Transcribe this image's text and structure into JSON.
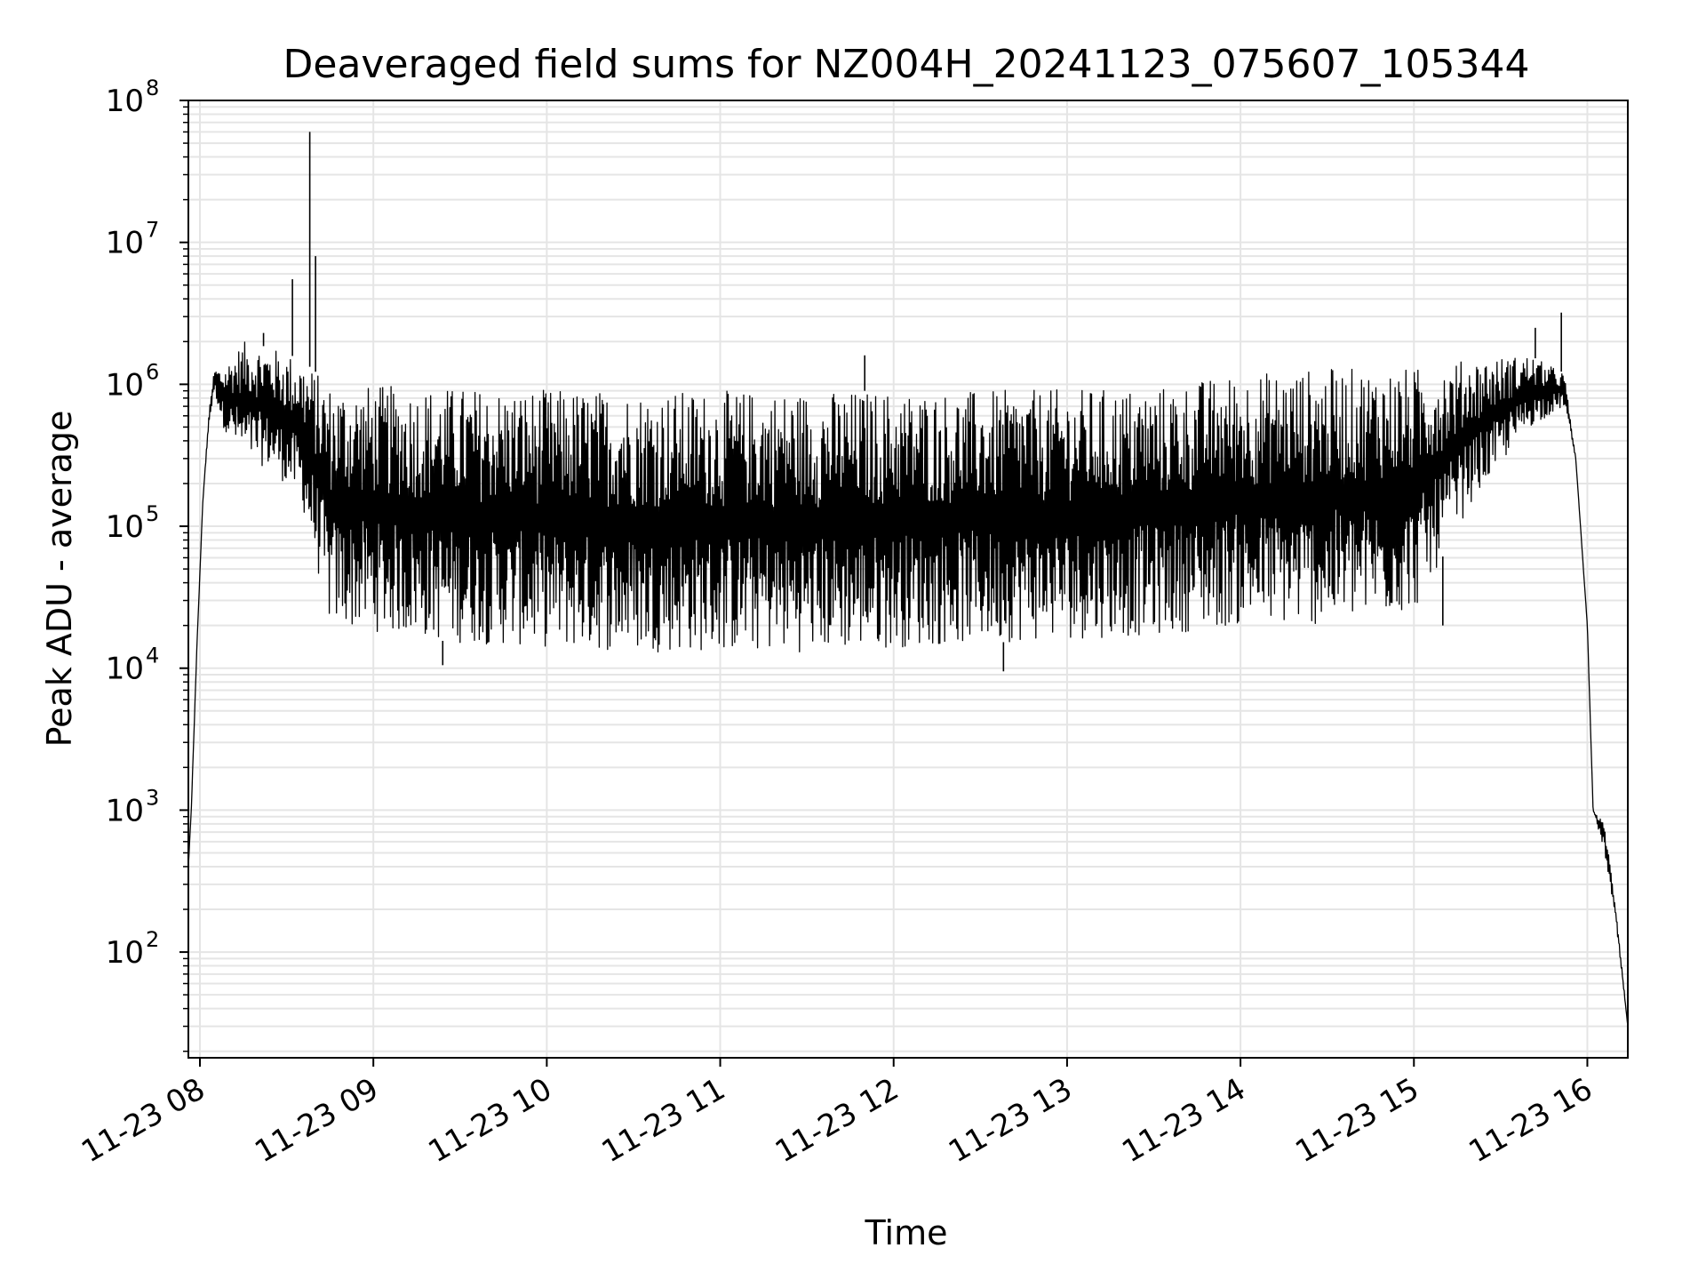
{
  "chart_data": {
    "type": "line",
    "title": "Deaveraged field sums for NZ004H_20241123_075607_105344",
    "xlabel": "Time",
    "ylabel": "Peak ADU - average",
    "yscale": "log",
    "ylim": [
      18,
      100000000
    ],
    "xlim": [
      "2024-11-23 07:56",
      "2024-11-23 16:14"
    ],
    "grid": true,
    "line_color": "#000000",
    "grid_color": "#e5e5e5",
    "x_ticks": [
      {
        "t": "2024-11-23 08:00",
        "label": "11-23 08"
      },
      {
        "t": "2024-11-23 09:00",
        "label": "11-23 09"
      },
      {
        "t": "2024-11-23 10:00",
        "label": "11-23 10"
      },
      {
        "t": "2024-11-23 11:00",
        "label": "11-23 11"
      },
      {
        "t": "2024-11-23 12:00",
        "label": "11-23 12"
      },
      {
        "t": "2024-11-23 13:00",
        "label": "11-23 13"
      },
      {
        "t": "2024-11-23 14:00",
        "label": "11-23 14"
      },
      {
        "t": "2024-11-23 15:00",
        "label": "11-23 15"
      },
      {
        "t": "2024-11-23 16:00",
        "label": "11-23 16"
      }
    ],
    "y_ticks": [
      {
        "value": 100,
        "base": "10",
        "exp": "2"
      },
      {
        "value": 1000,
        "base": "10",
        "exp": "3"
      },
      {
        "value": 10000,
        "base": "10",
        "exp": "4"
      },
      {
        "value": 100000,
        "base": "10",
        "exp": "5"
      },
      {
        "value": 1000000,
        "base": "10",
        "exp": "6"
      },
      {
        "value": 10000000,
        "base": "10",
        "exp": "7"
      },
      {
        "value": 100000000,
        "base": "10",
        "exp": "8"
      }
    ],
    "series": [
      {
        "envelope": [
          {
            "t": "2024-11-23 07:56",
            "low": 400,
            "high": 400
          },
          {
            "t": "2024-11-23 07:57",
            "low": 1000,
            "high": 1000
          },
          {
            "t": "2024-11-23 07:59",
            "low": 15000,
            "high": 15000
          },
          {
            "t": "2024-11-23 08:01",
            "low": 150000,
            "high": 150000
          },
          {
            "t": "2024-11-23 08:03",
            "low": 500000,
            "high": 600000
          },
          {
            "t": "2024-11-23 08:05",
            "low": 900000,
            "high": 1300000
          },
          {
            "t": "2024-11-23 08:08",
            "low": 500000,
            "high": 1300000
          },
          {
            "t": "2024-11-23 08:15",
            "low": 300000,
            "high": 2000000
          },
          {
            "t": "2024-11-23 08:25",
            "low": 250000,
            "high": 1800000
          },
          {
            "t": "2024-11-23 08:35",
            "low": 150000,
            "high": 1500000
          },
          {
            "t": "2024-11-23 08:45",
            "low": 20000,
            "high": 1000000
          },
          {
            "t": "2024-11-23 09:30",
            "low": 15000,
            "high": 950000
          },
          {
            "t": "2024-11-23 10:30",
            "low": 13000,
            "high": 900000
          },
          {
            "t": "2024-11-23 11:30",
            "low": 13000,
            "high": 900000
          },
          {
            "t": "2024-11-23 12:30",
            "low": 15000,
            "high": 900000
          },
          {
            "t": "2024-11-23 13:30",
            "low": 17000,
            "high": 950000
          },
          {
            "t": "2024-11-23 14:00",
            "low": 20000,
            "high": 1200000
          },
          {
            "t": "2024-11-23 14:30",
            "low": 20000,
            "high": 1300000
          },
          {
            "t": "2024-11-23 15:00",
            "low": 25000,
            "high": 1300000
          },
          {
            "t": "2024-11-23 15:20",
            "low": 150000,
            "high": 1500000
          },
          {
            "t": "2024-11-23 15:40",
            "low": 500000,
            "high": 1600000
          },
          {
            "t": "2024-11-23 15:52",
            "low": 700000,
            "high": 1200000
          },
          {
            "t": "2024-11-23 15:56",
            "low": 300000,
            "high": 300000
          },
          {
            "t": "2024-11-23 16:00",
            "low": 20000,
            "high": 20000
          },
          {
            "t": "2024-11-23 16:02",
            "low": 1000,
            "high": 1000
          },
          {
            "t": "2024-11-23 16:06",
            "low": 500,
            "high": 800
          },
          {
            "t": "2024-11-23 16:10",
            "low": 150,
            "high": 200
          },
          {
            "t": "2024-11-23 16:14",
            "low": 30,
            "high": 30
          }
        ],
        "spikes": [
          {
            "t": "2024-11-23 08:22",
            "value": 2300000
          },
          {
            "t": "2024-11-23 08:32",
            "value": 5500000
          },
          {
            "t": "2024-11-23 08:38",
            "value": 60000000
          },
          {
            "t": "2024-11-23 08:40",
            "value": 8000000
          },
          {
            "t": "2024-11-23 09:24",
            "value": 10500
          },
          {
            "t": "2024-11-23 11:50",
            "value": 1600000
          },
          {
            "t": "2024-11-23 12:38",
            "value": 9500
          },
          {
            "t": "2024-11-23 15:10",
            "value": 20000
          },
          {
            "t": "2024-11-23 15:42",
            "value": 2500000
          },
          {
            "t": "2024-11-23 15:51",
            "value": 3200000
          }
        ]
      }
    ]
  }
}
